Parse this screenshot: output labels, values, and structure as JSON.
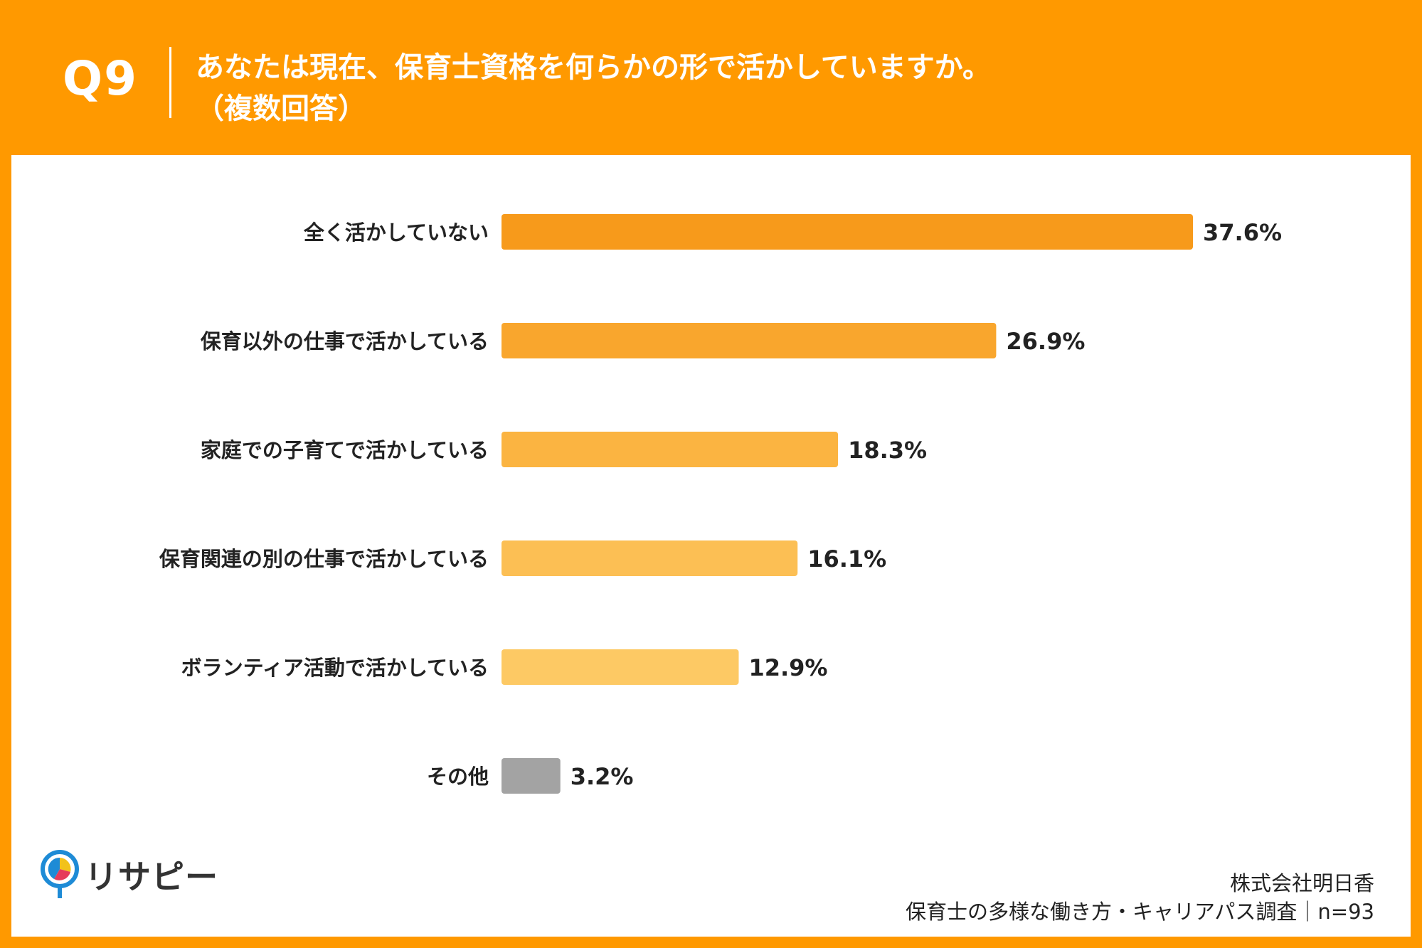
{
  "header": {
    "question_number": "Q9",
    "title_line1": "あなたは現在、保育士資格を何らかの形で活かしていますか。",
    "title_line2": "（複数回答）",
    "background_color": "#FF9900"
  },
  "chart_data": {
    "type": "bar",
    "orientation": "horizontal",
    "categories": [
      "全く活かしていない",
      "保育以外の仕事で活かしている",
      "家庭での子育てで活かしている",
      "保育関連の別の仕事で活かしている",
      "ボランティア活動で活かしている",
      "その他"
    ],
    "values": [
      37.6,
      26.9,
      18.3,
      16.1,
      12.9,
      3.2
    ],
    "value_labels": [
      "37.6%",
      "26.9%",
      "18.3%",
      "16.1%",
      "12.9%",
      "3.2%"
    ],
    "bar_colors": [
      "#F79A1B",
      "#F9A62D",
      "#FBB441",
      "#FCBF54",
      "#FDC964",
      "#A3A3A3"
    ],
    "grid": false,
    "legend": "none"
  },
  "logo": {
    "text": "リサピー",
    "icon": "location-pin-pie-icon"
  },
  "footer": {
    "company": "株式会社明日香",
    "survey": "保育士の多様な働き方・キャリアパス調査｜n=93"
  }
}
